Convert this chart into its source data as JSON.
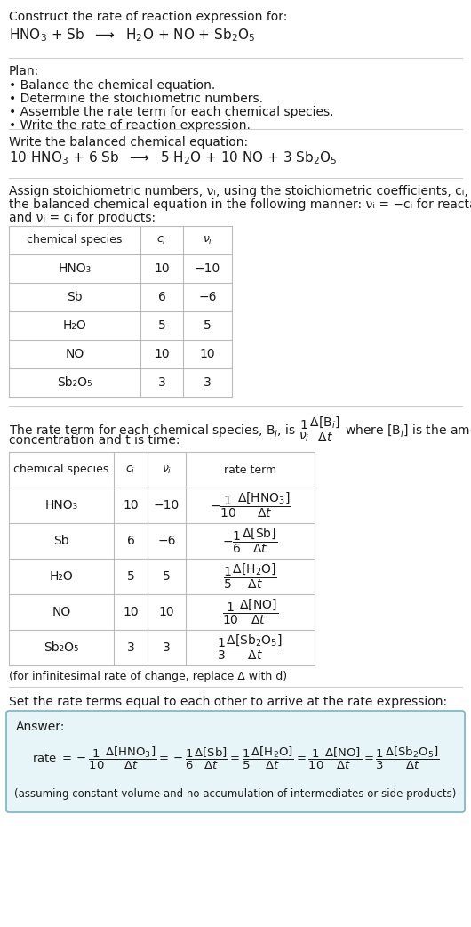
{
  "title_line1": "Construct the rate of reaction expression for:",
  "title_line2_plain": "HNO",
  "plan_header": "Plan:",
  "plan_items": [
    "• Balance the chemical equation.",
    "• Determine the stoichiometric numbers.",
    "• Assemble the rate term for each chemical species.",
    "• Write the rate of reaction expression."
  ],
  "balanced_header": "Write the balanced chemical equation:",
  "stoich_intro_line1": "Assign stoichiometric numbers, νᵢ, using the stoichiometric coefficients, cᵢ, from",
  "stoich_intro_line2": "the balanced chemical equation in the following manner: νᵢ = −cᵢ for reactants",
  "stoich_intro_line3": "and νᵢ = cᵢ for products:",
  "table1_header": [
    "chemical species",
    "cᵢ",
    "νᵢ"
  ],
  "table1_rows": [
    [
      "HNO₃",
      "10",
      "−10"
    ],
    [
      "Sb",
      "6",
      "−6"
    ],
    [
      "H₂O",
      "5",
      "5"
    ],
    [
      "NO",
      "10",
      "10"
    ],
    [
      "Sb₂O₅",
      "3",
      "3"
    ]
  ],
  "rate_intro_line1": "The rate term for each chemical species, Bᵢ, is",
  "rate_intro_line2": "concentration and t is time:",
  "table2_header": [
    "chemical species",
    "cᵢ",
    "νᵢ",
    "rate term"
  ],
  "table2_rows": [
    [
      "HNO₃",
      "10",
      "−10"
    ],
    [
      "Sb",
      "6",
      "−6"
    ],
    [
      "H₂O",
      "5",
      "5"
    ],
    [
      "NO",
      "10",
      "10"
    ],
    [
      "Sb₂O₅",
      "3",
      "3"
    ]
  ],
  "infinitesimal_note": "(for infinitesimal rate of change, replace Δ with d)",
  "set_equal_text": "Set the rate terms equal to each other to arrive at the rate expression:",
  "answer_label": "Answer:",
  "answer_note": "(assuming constant volume and no accumulation of intermediates or side products)",
  "bg_color": "#ffffff",
  "text_color": "#1a1a1a",
  "table_line_color": "#bbbbbb",
  "answer_box_bg": "#e8f5f8",
  "answer_box_border": "#7ab3c0",
  "divider_color": "#cccccc"
}
